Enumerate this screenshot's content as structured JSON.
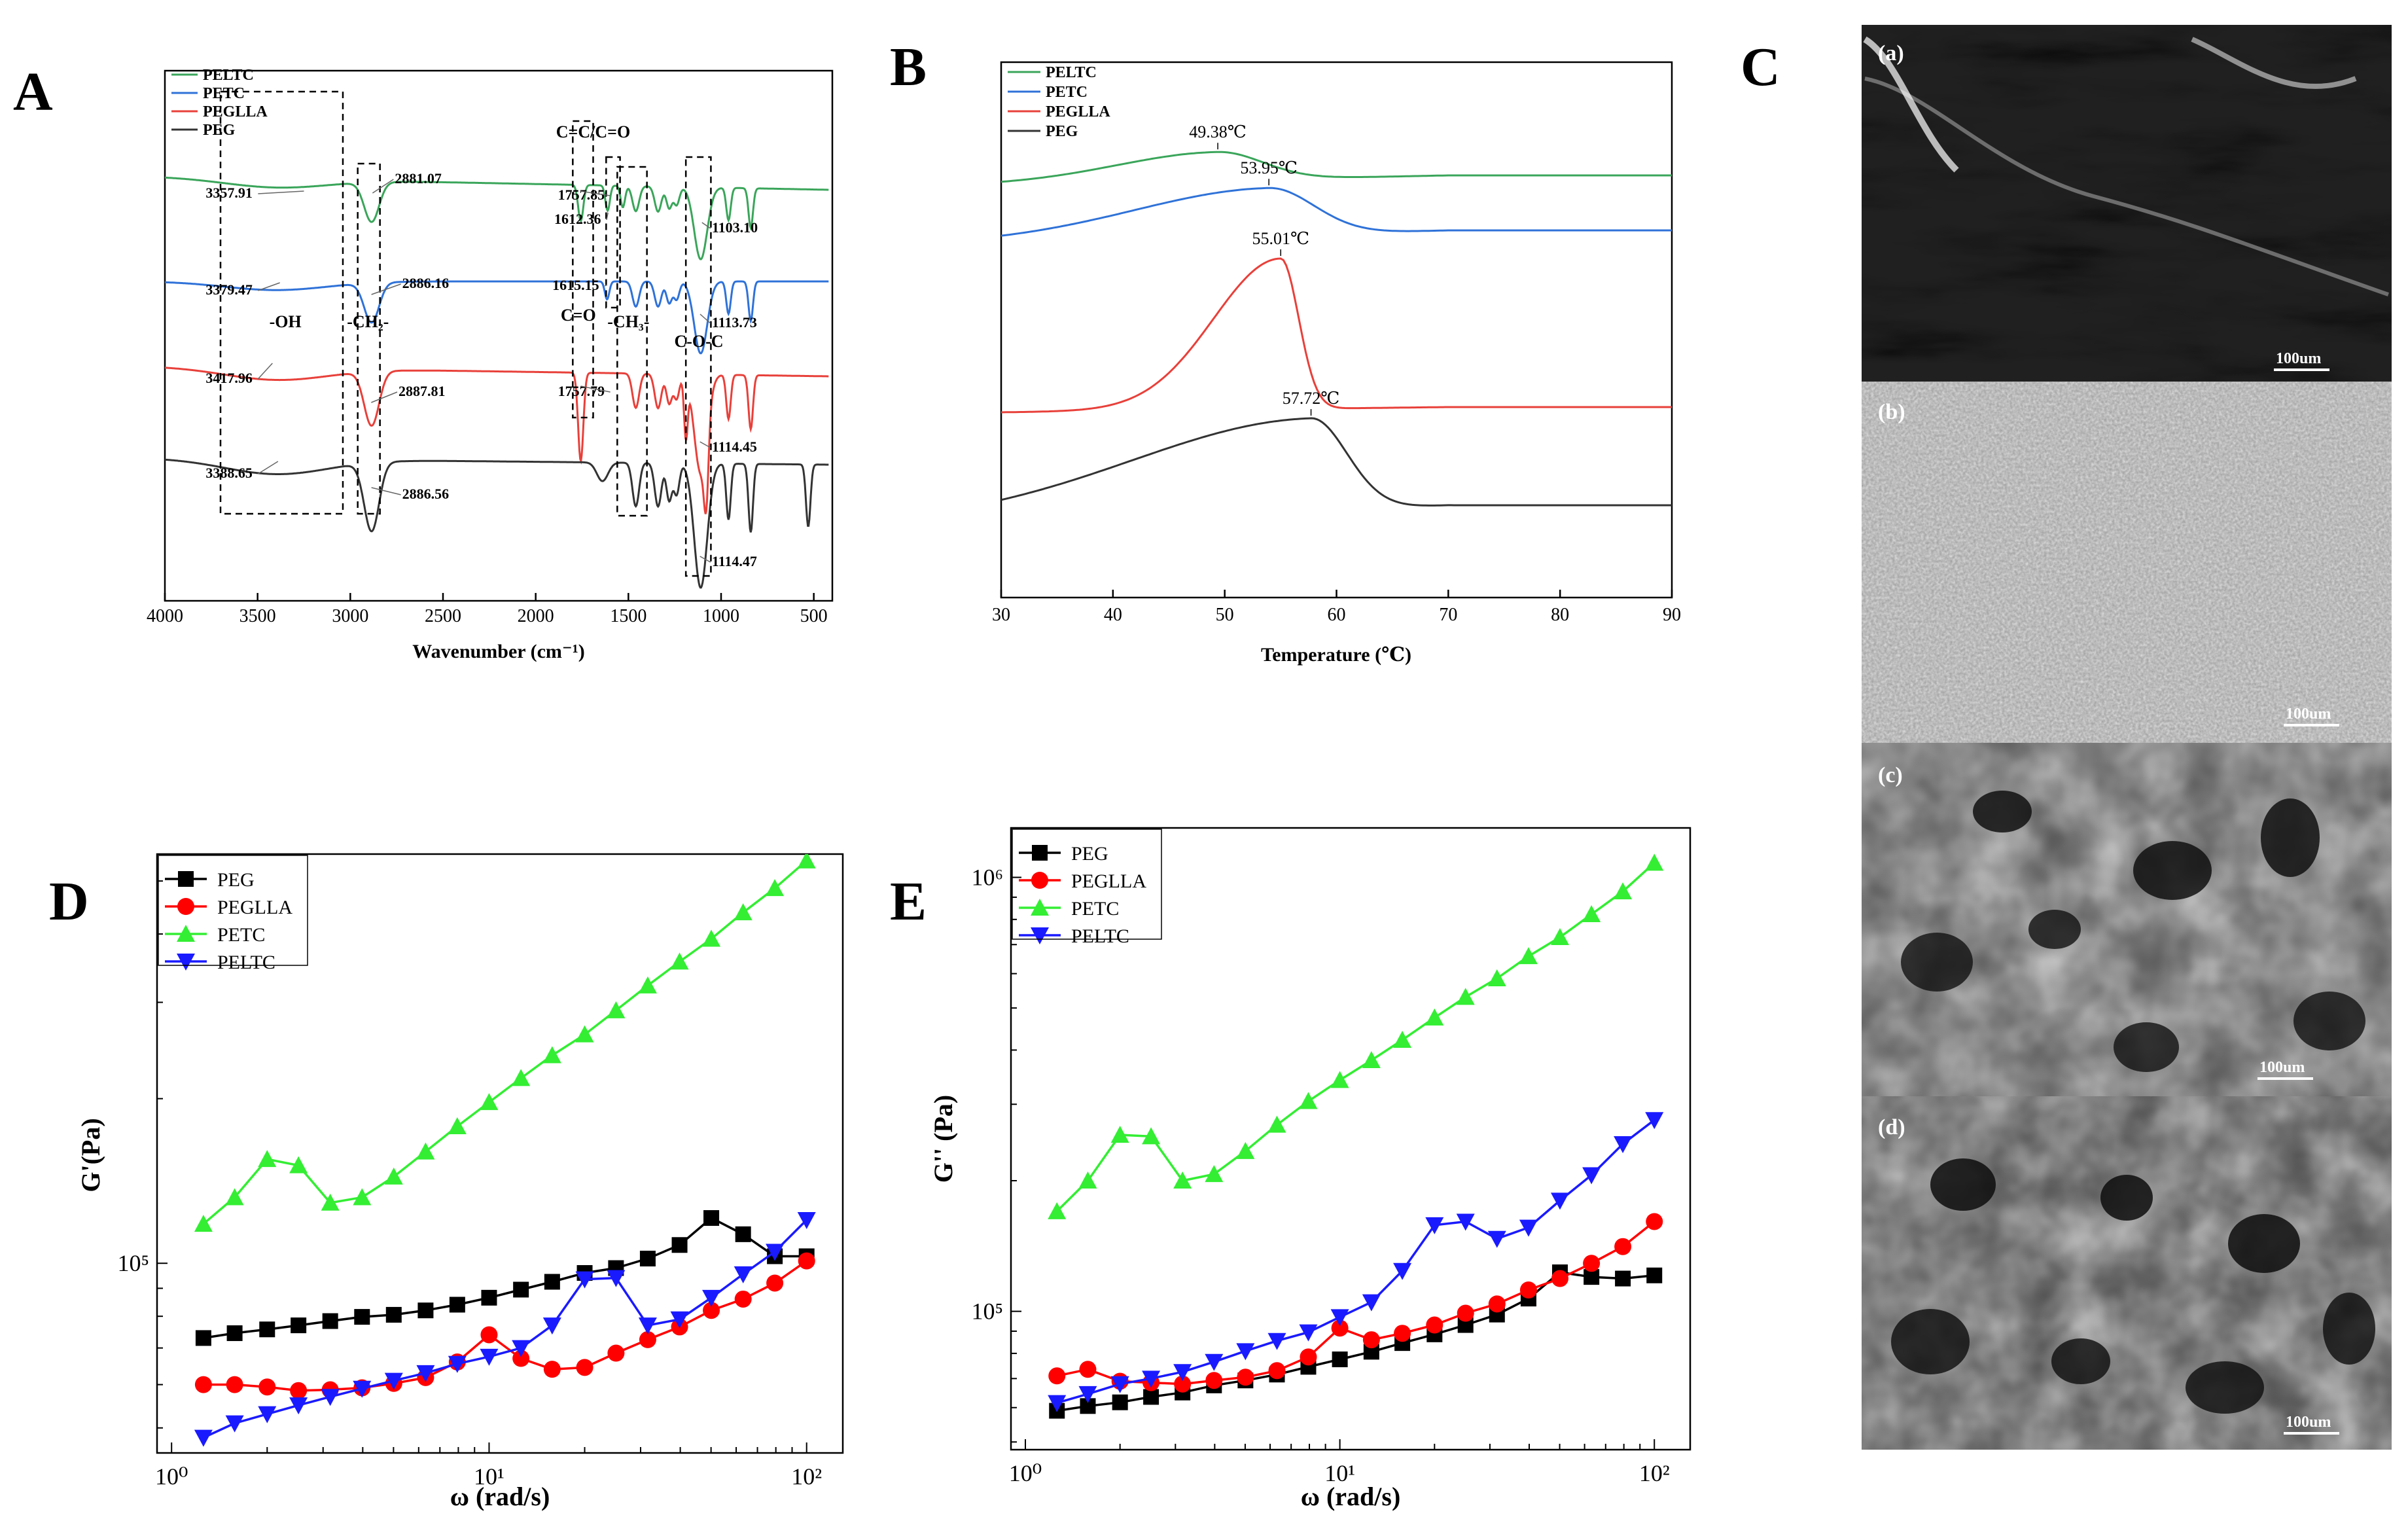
{
  "panels": {
    "A": "A",
    "B": "B",
    "C": "C",
    "D": "D",
    "E": "E"
  },
  "colors": {
    "green": "#3aa55a",
    "blue": "#2f72d8",
    "red": "#e8403a",
    "dark": "#333333",
    "d_black": "#000000",
    "d_red": "#ff0000",
    "d_green": "#33ee33",
    "d_blue": "#1a1aff"
  },
  "chart_data": [
    {
      "id": "A",
      "type": "line",
      "title": "",
      "xlabel": "Wavenumber (cm⁻¹)",
      "ylabel": "",
      "xlim": [
        4000,
        400
      ],
      "x_reversed": true,
      "xticks": [
        "4000",
        "3500",
        "3000",
        "2500",
        "2000",
        "1500",
        "1000",
        "500"
      ],
      "legend": [
        "PELTC",
        "PETC",
        "PEGLLA",
        "PEG"
      ],
      "series": [
        {
          "name": "PELTC",
          "color": "#3aa55a",
          "baseline": 0.0
        },
        {
          "name": "PETC",
          "color": "#2f72d8",
          "baseline": 1.0
        },
        {
          "name": "PEGLLA",
          "color": "#e8403a",
          "baseline": 2.0
        },
        {
          "name": "PEG",
          "color": "#333333",
          "baseline": 2.95
        }
      ],
      "annotations": [
        "3357.91",
        "2881.07",
        "1757.85",
        "1612.36",
        "1103.10",
        "3379.47",
        "2886.16",
        "1615.15",
        "1113.73",
        "3417.96",
        "2887.81",
        "1757.79",
        "1114.45",
        "3388.65",
        "2886.56",
        "1114.47"
      ],
      "group_labels": [
        "-OH",
        "-CH₂-",
        "C=C/C=O",
        "C=O",
        "-CH₃-",
        "C-O-C"
      ]
    },
    {
      "id": "B",
      "type": "line",
      "title": "",
      "xlabel": "Temperature (℃)",
      "ylabel": "",
      "xlim": [
        30,
        90
      ],
      "xticks": [
        "30",
        "40",
        "50",
        "60",
        "70",
        "80",
        "90"
      ],
      "legend": [
        "PELTC",
        "PETC",
        "PEGLLA",
        "PEG"
      ],
      "series": [
        {
          "name": "PELTC",
          "color": "#3aa55a",
          "peak_temp": 49.38,
          "peak_label": "49.38℃"
        },
        {
          "name": "PETC",
          "color": "#2f72d8",
          "peak_temp": 53.95,
          "peak_label": "53.95℃"
        },
        {
          "name": "PEGLLA",
          "color": "#e8403a",
          "peak_temp": 55.01,
          "peak_label": "55.01℃"
        },
        {
          "name": "PEG",
          "color": "#333333",
          "peak_temp": 57.72,
          "peak_label": "57.72℃"
        }
      ]
    },
    {
      "id": "D",
      "type": "line",
      "title": "",
      "xlabel": "ω (rad/s)",
      "ylabel": "G'(Pa)",
      "x_scale": "log",
      "y_scale": "log",
      "xlim": [
        0.9,
        130
      ],
      "ylim": [
        45000,
        560000
      ],
      "xticks": [
        "10⁰",
        "10¹",
        "10²"
      ],
      "yticks": [
        "10⁵"
      ],
      "x": [
        1.26,
        1.58,
        2.0,
        2.51,
        3.16,
        3.98,
        5.01,
        6.31,
        7.94,
        10.0,
        12.6,
        15.8,
        20.0,
        25.1,
        31.6,
        39.8,
        50.1,
        63.1,
        79.4,
        100.0
      ],
      "series": [
        {
          "name": "PEG",
          "color": "#000000",
          "marker": "square",
          "values": [
            73000,
            74500,
            75700,
            77000,
            78400,
            79800,
            80500,
            82000,
            84000,
            86500,
            89500,
            92500,
            96000,
            98000,
            102000,
            108000,
            121000,
            113000,
            103000,
            103000
          ]
        },
        {
          "name": "PEGLLA",
          "color": "#ff0000",
          "marker": "circle",
          "values": [
            60000,
            60000,
            59400,
            58500,
            58700,
            59200,
            60300,
            61800,
            66000,
            74000,
            67000,
            64000,
            64500,
            68500,
            72500,
            76500,
            82000,
            86000,
            92000,
            101000
          ]
        },
        {
          "name": "PETC",
          "color": "#33ee33",
          "marker": "triangle-up",
          "values": [
            118000,
            132000,
            155000,
            151000,
            129000,
            132000,
            144000,
            160000,
            178000,
            197000,
            218000,
            240000,
            262000,
            290000,
            322000,
            356000,
            392000,
            438000,
            485000,
            545000
          ]
        },
        {
          "name": "PELTC",
          "color": "#1a1aff",
          "marker": "triangle-down",
          "values": [
            48000,
            51000,
            53000,
            55000,
            57000,
            59000,
            61000,
            63000,
            65500,
            67500,
            70000,
            77000,
            93500,
            94000,
            77000,
            79000,
            86500,
            95500,
            105000,
            120000
          ]
        }
      ]
    },
    {
      "id": "E",
      "type": "line",
      "title": "",
      "xlabel": "ω (rad/s)",
      "ylabel": "G'' (Pa)",
      "x_scale": "log",
      "y_scale": "log",
      "xlim": [
        0.9,
        130
      ],
      "ylim": [
        48000,
        1300000
      ],
      "xticks": [
        "10⁰",
        "10¹",
        "10²"
      ],
      "yticks": [
        "10⁵",
        "10⁶"
      ],
      "x": [
        1.26,
        1.58,
        2.0,
        2.51,
        3.16,
        3.98,
        5.01,
        6.31,
        7.94,
        10.0,
        12.6,
        15.8,
        20.0,
        25.1,
        31.6,
        39.8,
        50.1,
        63.1,
        79.4,
        100.0
      ],
      "series": [
        {
          "name": "PEG",
          "color": "#000000",
          "marker": "square",
          "values": [
            59000,
            60500,
            61700,
            63500,
            65000,
            67500,
            69300,
            71500,
            74500,
            77500,
            80700,
            84500,
            88500,
            93000,
            98300,
            107000,
            123000,
            120000,
            119000,
            121000
          ]
        },
        {
          "name": "PEGLLA",
          "color": "#ff0000",
          "marker": "circle",
          "values": [
            71000,
            73500,
            69000,
            68500,
            68000,
            69300,
            70500,
            73000,
            78500,
            91500,
            86000,
            89000,
            93000,
            99000,
            104000,
            112000,
            119000,
            129000,
            141000,
            161000
          ]
        },
        {
          "name": "PETC",
          "color": "#33ee33",
          "marker": "triangle-up",
          "values": [
            170000,
            200000,
            255000,
            253000,
            200000,
            207000,
            234000,
            269000,
            305000,
            341000,
            379000,
            422000,
            475000,
            530000,
            585000,
            658000,
            728000,
            822000,
            928000,
            1080000
          ]
        },
        {
          "name": "PELTC",
          "color": "#1a1aff",
          "marker": "triangle-down",
          "values": [
            61500,
            64500,
            68000,
            70000,
            72500,
            76500,
            81000,
            85500,
            89500,
            97000,
            105000,
            124000,
            158000,
            161000,
            147000,
            156000,
            180000,
            206000,
            243000,
            276000
          ]
        }
      ]
    }
  ],
  "sem": {
    "labels": [
      "(a)",
      "(b)",
      "(c)",
      "(d)"
    ],
    "scale": [
      "100um",
      "100um",
      "100um",
      "100um"
    ]
  }
}
